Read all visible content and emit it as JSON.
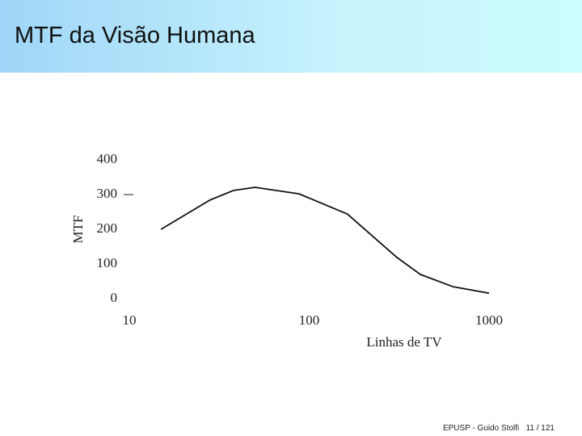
{
  "header": {
    "title": "MTF da Visão Humana"
  },
  "footer": {
    "author": "EPUSP - Guido Stolfi",
    "page": "11 / 121"
  },
  "chart_data": {
    "type": "line",
    "x_label": "Linhas de TV",
    "y_label": "MTF",
    "xscale": "log",
    "x": [
      15,
      28,
      38,
      50,
      88,
      163,
      304,
      415,
      628,
      1000
    ],
    "series": [
      {
        "name": "MTF",
        "color": "#111111",
        "values": [
          200,
          284,
          312,
          321,
          302,
          244,
          121,
          70,
          35,
          16
        ]
      }
    ],
    "xlim": [
      10,
      1000
    ],
    "xticks": [
      10,
      100,
      1000
    ],
    "ylim": [
      0,
      400
    ],
    "yticks": [
      0,
      100,
      200,
      300,
      400
    ],
    "ytick_marks": [
      300
    ]
  }
}
